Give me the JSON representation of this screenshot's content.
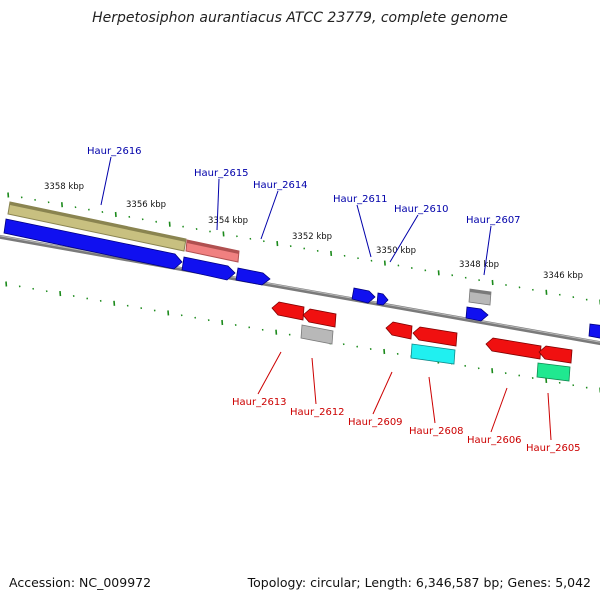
{
  "title": "Herpetosiphon aurantiacus ATCC 23779, complete genome",
  "accession": "Accession: NC_009972",
  "summary": "Topology: circular; Length: 6,346,587 bp; Genes: 5,042",
  "colors": {
    "backbone": "#808080",
    "tick": "#1b8a1b",
    "forward_gene": "#1010f0",
    "reverse_gene": "#f01010",
    "forward_label": "#0000aa",
    "reverse_label": "#cc0000",
    "olive_feature": "#c8c080",
    "pink_feature": "#f08080",
    "gray_feature": "#b8b8b8",
    "cyan_feature": "#20f0f0",
    "green_feature": "#20e890"
  },
  "scale_labels": [
    "3358 kbp",
    "3356 kbp",
    "3354 kbp",
    "3352 kbp",
    "3350 kbp",
    "3348 kbp",
    "3346 kbp"
  ],
  "genes": [
    {
      "label": "Haur_2616",
      "strand": "+"
    },
    {
      "label": "Haur_2615",
      "strand": "+"
    },
    {
      "label": "Haur_2614",
      "strand": "+"
    },
    {
      "label": "Haur_2611",
      "strand": "+"
    },
    {
      "label": "Haur_2610",
      "strand": "+"
    },
    {
      "label": "Haur_2607",
      "strand": "+"
    },
    {
      "label": "Haur_2613",
      "strand": "-"
    },
    {
      "label": "Haur_2612",
      "strand": "-"
    },
    {
      "label": "Haur_2609",
      "strand": "-"
    },
    {
      "label": "Haur_2608",
      "strand": "-"
    },
    {
      "label": "Haur_2606",
      "strand": "-"
    },
    {
      "label": "Haur_2605",
      "strand": "-"
    }
  ]
}
